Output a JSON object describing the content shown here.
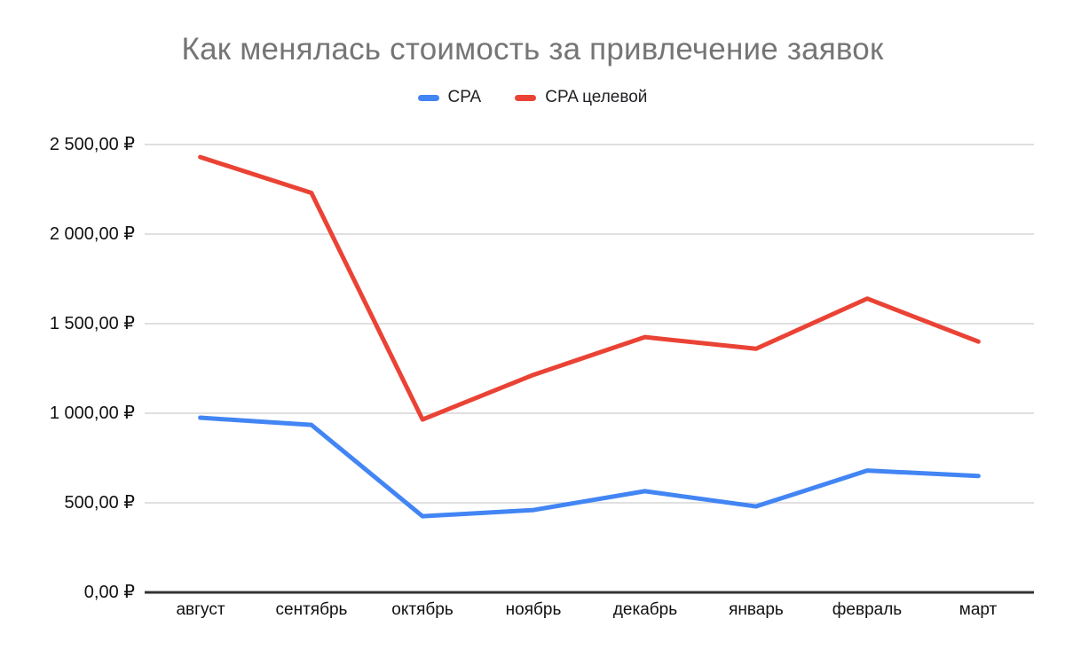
{
  "title": "Как менялась стоимость за привлечение заявок",
  "legend": {
    "items": [
      {
        "label": "CPA",
        "color": "#4285f4"
      },
      {
        "label": "CPA целевой",
        "color": "#ea4335"
      }
    ]
  },
  "chart_data": {
    "type": "line",
    "title": "Как менялась стоимость за привлечение заявок",
    "categories": [
      "август",
      "сентябрь",
      "октябрь",
      "ноябрь",
      "декабрь",
      "январь",
      "февраль",
      "март"
    ],
    "series": [
      {
        "name": "CPA",
        "color": "#4285f4",
        "values": [
          975,
          935,
          425,
          460,
          565,
          480,
          680,
          650
        ]
      },
      {
        "name": "CPA целевой",
        "color": "#ea4335",
        "values": [
          2430,
          2230,
          965,
          1215,
          1425,
          1360,
          1640,
          1400
        ]
      }
    ],
    "xlabel": "",
    "ylabel": "",
    "ylim": [
      0,
      2500
    ],
    "y_ticks": [
      0,
      500,
      1000,
      1500,
      2000,
      2500
    ],
    "y_tick_labels": [
      "0,00 ₽",
      "500,00 ₽",
      "1 000,00 ₽",
      "1 500,00 ₽",
      "2 000,00 ₽",
      "2 500,00 ₽"
    ],
    "currency": "₽",
    "grid": true,
    "legend_position": "top",
    "colors": {
      "title_text": "#757575",
      "axis_text": "#111111",
      "gridline": "#e0e0e0",
      "axis_line": "#333333",
      "background": "#ffffff"
    }
  }
}
